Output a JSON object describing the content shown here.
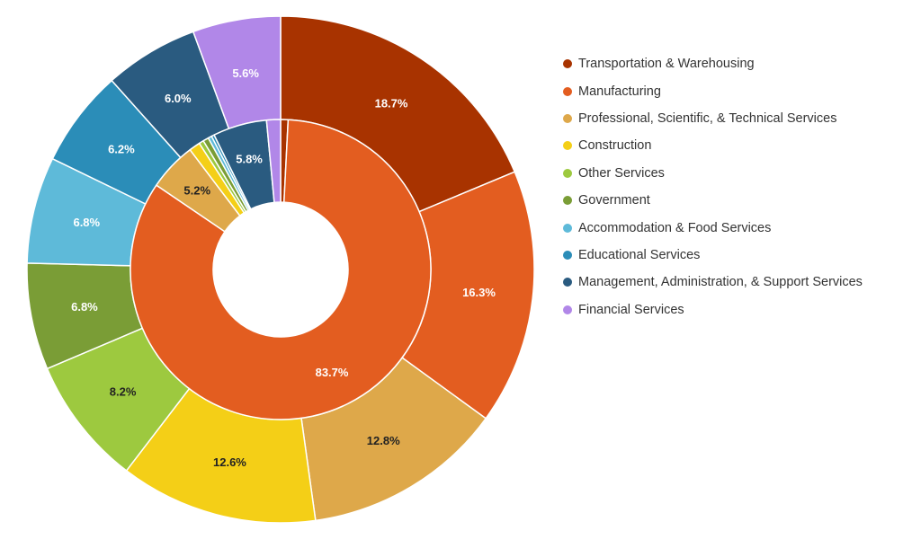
{
  "chart_data": {
    "type": "pie",
    "subtype": "nested-donut",
    "legend_position": "right",
    "categories": [
      "Transportation & Warehousing",
      "Manufacturing",
      "Professional, Scientific, & Technical Services",
      "Construction",
      "Other Services",
      "Government",
      "Accommodation & Food Services",
      "Educational Services",
      "Management, Administration, & Support Services",
      "Financial Services"
    ],
    "colors": [
      "#a83300",
      "#e35d20",
      "#dea84a",
      "#f4cf17",
      "#9dc93f",
      "#7a9d36",
      "#5ebad9",
      "#2b8db8",
      "#2a5b80",
      "#b187e8"
    ],
    "series": [
      {
        "ring": "outer",
        "values": [
          18.7,
          16.3,
          12.8,
          12.6,
          8.2,
          6.8,
          6.8,
          6.2,
          6.0,
          5.6
        ],
        "labels": [
          "18.7%",
          "16.3%",
          "12.8%",
          "12.6%",
          "8.2%",
          "6.8%",
          "6.8%",
          "6.2%",
          "6.0%",
          "5.6%"
        ]
      },
      {
        "ring": "inner",
        "values": [
          0.8,
          83.7,
          5.2,
          1.2,
          0.5,
          0.6,
          0.4,
          0.3,
          5.8,
          1.5
        ],
        "labels": [
          "",
          "83.7%",
          "5.2%",
          "",
          "",
          "",
          "",
          "",
          "5.8%",
          ""
        ]
      }
    ]
  }
}
